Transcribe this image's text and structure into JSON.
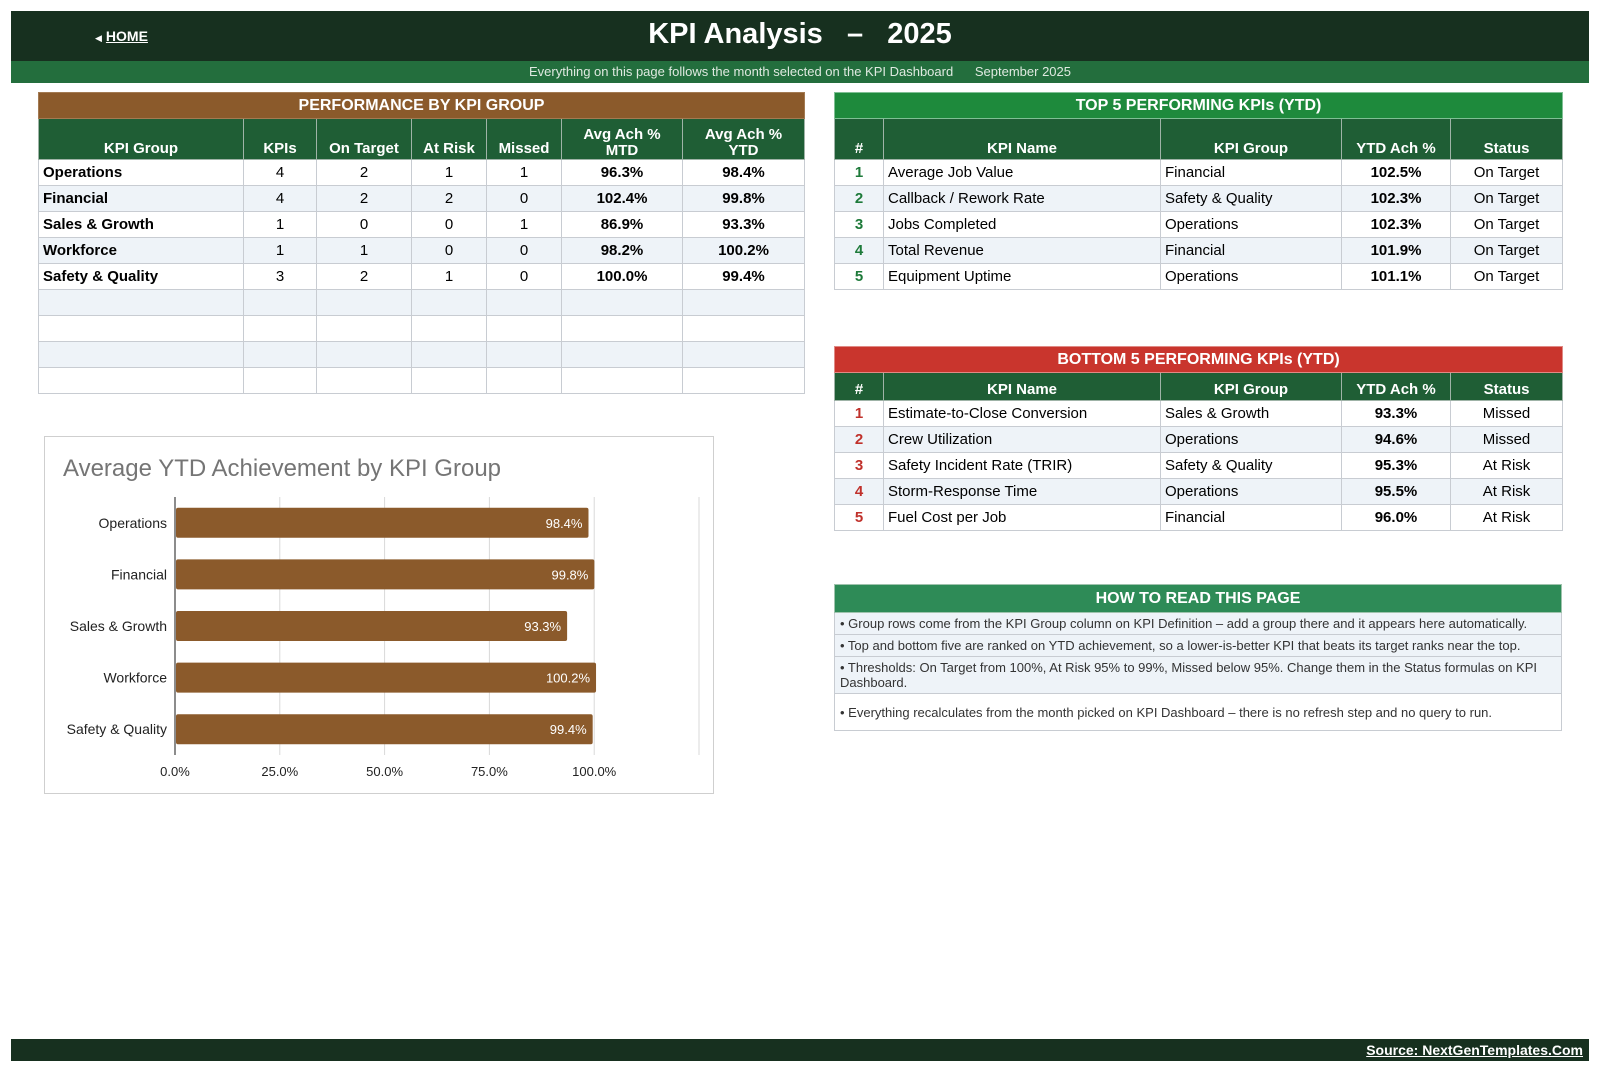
{
  "header": {
    "home_label": "HOME",
    "title": "KPI Analysis   –   2025",
    "subtitle": "Everything on this page follows the month selected on the KPI Dashboard      September 2025"
  },
  "group_table": {
    "caption": "PERFORMANCE BY KPI GROUP",
    "columns": [
      "KPI Group",
      "KPIs",
      "On Target",
      "At Risk",
      "Missed",
      "Avg Ach % MTD",
      "Avg Ach % YTD"
    ],
    "rows": [
      [
        "Operations",
        "4",
        "2",
        "1",
        "1",
        "96.3%",
        "98.4%"
      ],
      [
        "Financial",
        "4",
        "2",
        "2",
        "0",
        "102.4%",
        "99.8%"
      ],
      [
        "Sales & Growth",
        "1",
        "0",
        "0",
        "1",
        "86.9%",
        "93.3%"
      ],
      [
        "Workforce",
        "1",
        "1",
        "0",
        "0",
        "98.2%",
        "100.2%"
      ],
      [
        "Safety & Quality",
        "3",
        "2",
        "1",
        "0",
        "100.0%",
        "99.4%"
      ]
    ]
  },
  "top5": {
    "caption": "TOP 5 PERFORMING KPIs  (YTD)",
    "columns": [
      "#",
      "KPI Name",
      "KPI Group",
      "YTD Ach %",
      "Status"
    ],
    "rows": [
      [
        "1",
        "Average Job Value",
        "Financial",
        "102.5%",
        "On Target"
      ],
      [
        "2",
        "Callback / Rework Rate",
        "Safety & Quality",
        "102.3%",
        "On Target"
      ],
      [
        "3",
        "Jobs Completed",
        "Operations",
        "102.3%",
        "On Target"
      ],
      [
        "4",
        "Total Revenue",
        "Financial",
        "101.9%",
        "On Target"
      ],
      [
        "5",
        "Equipment Uptime",
        "Operations",
        "101.1%",
        "On Target"
      ]
    ]
  },
  "bottom5": {
    "caption": "BOTTOM 5 PERFORMING KPIs  (YTD)",
    "columns": [
      "#",
      "KPI Name",
      "KPI Group",
      "YTD Ach %",
      "Status"
    ],
    "rows": [
      [
        "1",
        "Estimate-to-Close Conversion",
        "Sales & Growth",
        "93.3%",
        "Missed"
      ],
      [
        "2",
        "Crew Utilization",
        "Operations",
        "94.6%",
        "Missed"
      ],
      [
        "3",
        "Safety Incident Rate (TRIR)",
        "Safety & Quality",
        "95.3%",
        "At Risk"
      ],
      [
        "4",
        "Storm-Response Time",
        "Operations",
        "95.5%",
        "At Risk"
      ],
      [
        "5",
        "Fuel Cost per Job",
        "Financial",
        "96.0%",
        "At Risk"
      ]
    ]
  },
  "howto": {
    "caption": "HOW TO READ THIS PAGE",
    "items": [
      "•  Group rows come from the KPI Group column on KPI Definition – add a group there and it appears here automatically.",
      "•  Top and bottom five are ranked on YTD achievement, so a lower-is-better KPI that beats its target ranks near the top.",
      "•  Thresholds: On Target from 100%, At Risk 95% to 99%, Missed below 95%. Change them in the Status formulas on KPI Dashboard.",
      "•  Everything recalculates from the month picked on KPI Dashboard – there is no refresh step and no query to run."
    ]
  },
  "chart_data": {
    "type": "bar",
    "orientation": "horizontal",
    "title": "Average YTD Achievement by KPI Group",
    "categories": [
      "Operations",
      "Financial",
      "Sales & Growth",
      "Workforce",
      "Safety & Quality"
    ],
    "values": [
      98.4,
      99.8,
      93.3,
      100.2,
      99.4
    ],
    "data_labels": [
      "98.4%",
      "99.8%",
      "93.3%",
      "100.2%",
      "99.4%"
    ],
    "xlim": [
      0,
      125
    ],
    "x_ticks": [
      0,
      25,
      50,
      75,
      100
    ],
    "x_tick_labels": [
      "0.0%",
      "25.0%",
      "50.0%",
      "75.0%",
      "100.0%"
    ],
    "grid": true,
    "bar_color": "#8b5a2b"
  },
  "footer": {
    "source": "Source: NextGenTemplates.Com"
  },
  "colors": {
    "header_dark": "#17301f",
    "header_green": "#236e3d",
    "group_caption": "#8b5a2b",
    "top_caption": "#1e8a3c",
    "bottom_caption": "#c9352d",
    "howto_caption": "#2e8b57"
  }
}
